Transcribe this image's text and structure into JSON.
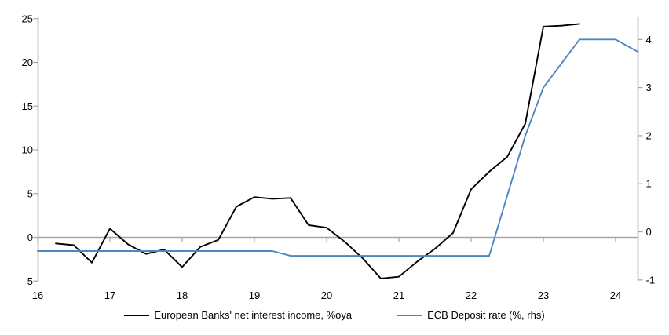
{
  "chart_data": {
    "type": "line",
    "title": "",
    "grid": "zero-line-only",
    "legend_position": "bottom-center",
    "x_axis": {
      "tick_labels": [
        "16",
        "17",
        "18",
        "19",
        "20",
        "21",
        "22",
        "23",
        "24"
      ],
      "tick_years": [
        16,
        17,
        18,
        19,
        20,
        21,
        22,
        23,
        24
      ],
      "range": [
        16,
        24.3
      ]
    },
    "left_axis": {
      "tick_values": [
        25,
        20,
        15,
        10,
        5,
        0,
        -5
      ],
      "range": [
        -5,
        25
      ]
    },
    "right_axis": {
      "tick_values": [
        4,
        3,
        2,
        1,
        0,
        -1
      ],
      "range": [
        -1,
        4.5
      ]
    },
    "colors": {
      "axis_gray": "#a6a6a6",
      "nii_black": "#000000",
      "ecb_blue": "#4e86c0"
    },
    "series": [
      {
        "name": "European Banks' net interest income, %oya",
        "axis": "left",
        "color": "#000000",
        "x": [
          16.25,
          16.5,
          16.75,
          17.0,
          17.25,
          17.5,
          17.75,
          18.0,
          18.25,
          18.5,
          18.75,
          19.0,
          19.25,
          19.5,
          19.75,
          20.0,
          20.25,
          20.5,
          20.75,
          21.0,
          21.25,
          21.5,
          21.75,
          22.0,
          22.25,
          22.5,
          22.75,
          23.0,
          23.25,
          23.5
        ],
        "values": [
          -0.7,
          -0.9,
          -2.9,
          1.0,
          -0.8,
          -1.9,
          -1.4,
          -3.4,
          -1.1,
          -0.3,
          3.5,
          4.6,
          4.4,
          4.5,
          1.4,
          1.1,
          -0.5,
          -2.4,
          -4.7,
          -4.5,
          -2.8,
          -1.3,
          0.5,
          5.5,
          7.5,
          9.2,
          13.0,
          24.1,
          24.2,
          24.4
        ]
      },
      {
        "name": "ECB Deposit rate (%, rhs)",
        "axis": "right",
        "color": "#4e86c0",
        "x": [
          16.0,
          16.25,
          16.5,
          16.75,
          17.0,
          17.25,
          17.5,
          17.75,
          18.0,
          18.25,
          18.5,
          18.75,
          19.0,
          19.25,
          19.5,
          19.75,
          20.0,
          20.25,
          20.5,
          20.75,
          21.0,
          21.25,
          21.5,
          21.75,
          22.0,
          22.25,
          22.5,
          22.75,
          23.0,
          23.25,
          23.5,
          23.75,
          24.0,
          24.3
        ],
        "values": [
          -0.4,
          -0.4,
          -0.4,
          -0.4,
          -0.4,
          -0.4,
          -0.4,
          -0.4,
          -0.4,
          -0.4,
          -0.4,
          -0.4,
          -0.4,
          -0.4,
          -0.5,
          -0.5,
          -0.5,
          -0.5,
          -0.5,
          -0.5,
          -0.5,
          -0.5,
          -0.5,
          -0.5,
          -0.5,
          -0.5,
          0.75,
          2.0,
          3.0,
          3.5,
          4.0,
          4.0,
          4.0,
          3.75
        ]
      }
    ]
  },
  "legend": {
    "item1": "European Banks' net interest income, %oya",
    "item2": "ECB Deposit rate (%, rhs)"
  }
}
